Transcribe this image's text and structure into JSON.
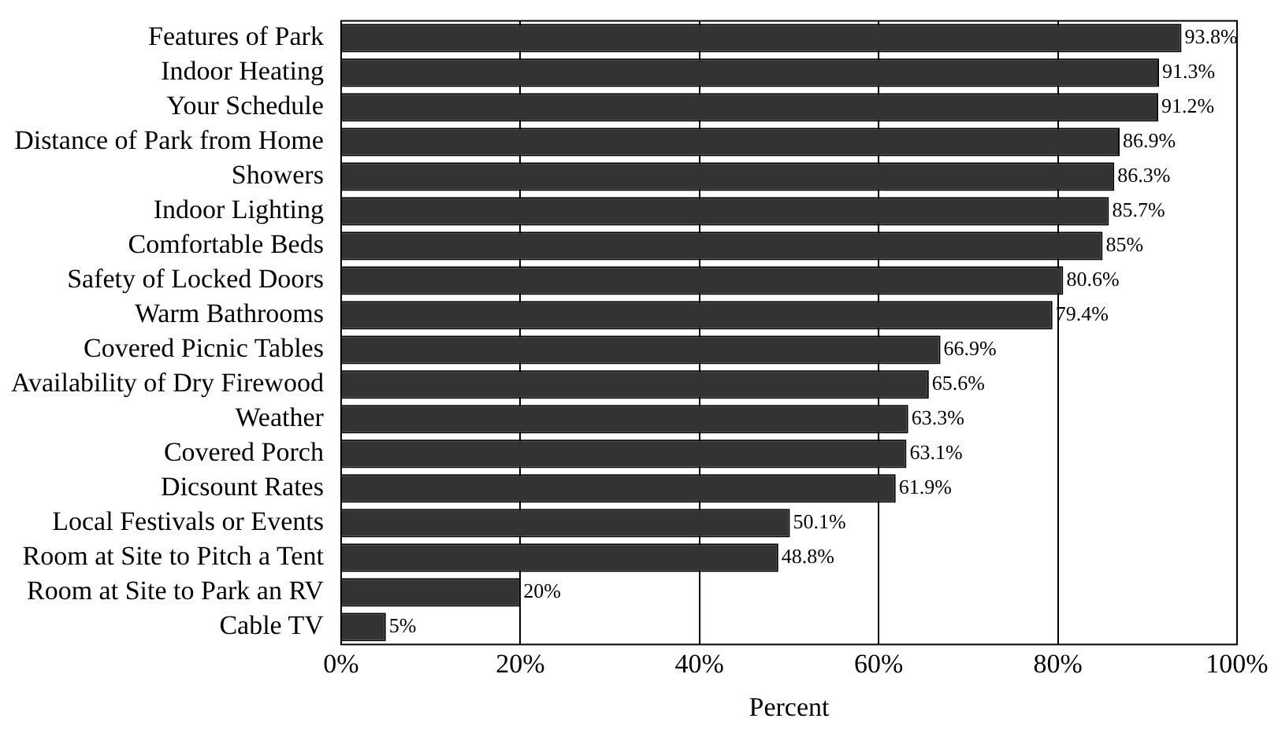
{
  "chart_data": {
    "type": "bar",
    "orientation": "horizontal",
    "xlabel": "Percent",
    "categories": [
      "Features of Park",
      "Indoor Heating",
      "Your Schedule",
      "Distance of Park from Home",
      "Showers",
      "Indoor Lighting",
      "Comfortable Beds",
      "Safety of Locked Doors",
      "Warm Bathrooms",
      "Covered Picnic Tables",
      "Availability of Dry Firewood",
      "Weather",
      "Covered Porch",
      "Dicsount Rates",
      "Local Festivals or Events",
      "Room at Site to Pitch a Tent",
      "Room at Site to Park an RV",
      "Cable TV"
    ],
    "values": [
      93.8,
      91.3,
      91.2,
      86.9,
      86.3,
      85.7,
      85,
      80.6,
      79.4,
      66.9,
      65.6,
      63.3,
      63.1,
      61.9,
      50.1,
      48.8,
      20,
      5
    ],
    "value_labels": [
      "93.8%",
      "91.3%",
      "91.2%",
      "86.9%",
      "86.3%",
      "85.7%",
      "85%",
      "80.6%",
      "79.4%",
      "66.9%",
      "65.6%",
      "63.3%",
      "63.1%",
      "61.9%",
      "50.1%",
      "48.8%",
      "20%",
      "5%"
    ],
    "color": "#333333",
    "xlim": [
      0,
      100
    ],
    "xticks": [
      {
        "value": 0,
        "label": "0%"
      },
      {
        "value": 20,
        "label": "20%"
      },
      {
        "value": 40,
        "label": "40%"
      },
      {
        "value": 60,
        "label": "60%"
      },
      {
        "value": 80,
        "label": "80%"
      },
      {
        "value": 100,
        "label": "100%"
      }
    ],
    "grid": "x",
    "legend": false
  }
}
